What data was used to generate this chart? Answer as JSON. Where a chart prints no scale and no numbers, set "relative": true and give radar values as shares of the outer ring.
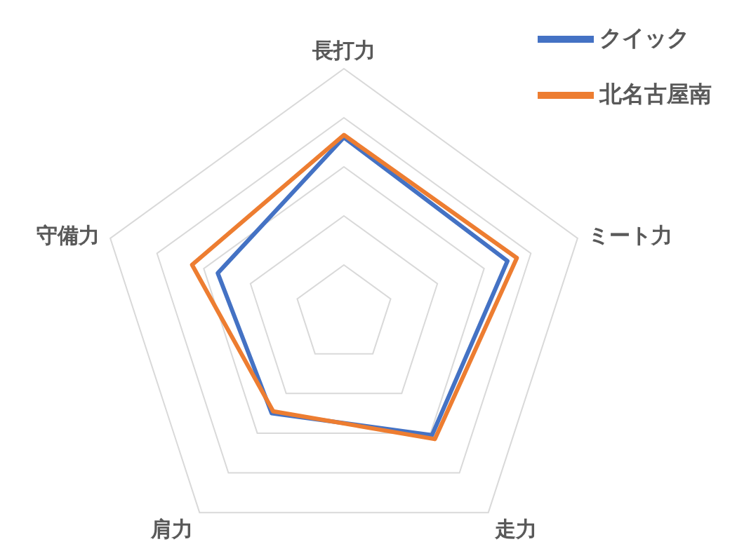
{
  "chart_data": {
    "type": "radar",
    "categories": [
      "長打力",
      "ミート力",
      "走力",
      "肩力",
      "守備力"
    ],
    "relative": true,
    "grid": true,
    "legend": "top right",
    "series": [
      {
        "name": "クイック",
        "color": "#4472c4",
        "values": [
          0.72,
          0.7,
          0.61,
          0.5,
          0.54
        ]
      },
      {
        "name": "北名古屋南",
        "color": "#ed7d31",
        "values": [
          0.73,
          0.74,
          0.63,
          0.49,
          0.65
        ]
      }
    ]
  }
}
